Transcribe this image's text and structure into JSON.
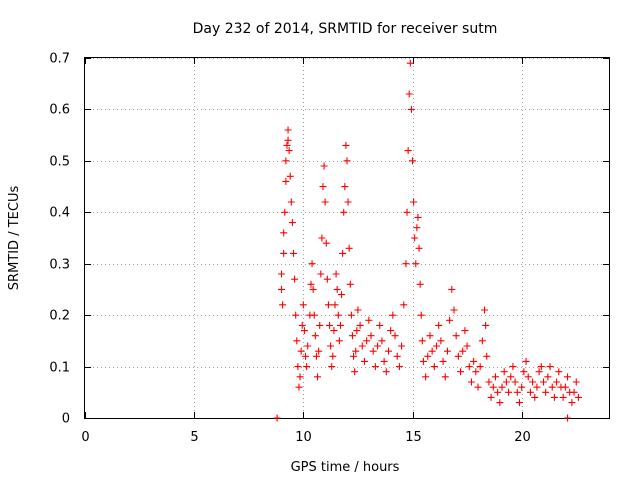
{
  "chart_data": {
    "type": "scatter",
    "title": "Day 232 of 2014, SRMTID for receiver sutm",
    "xlabel": "GPS time / hours",
    "ylabel": "SRMTID / TECUs",
    "xlim": [
      0,
      24
    ],
    "ylim": [
      0,
      0.7
    ],
    "xticks": [
      0,
      5,
      10,
      15,
      20
    ],
    "yticks": [
      0,
      0.1,
      0.2,
      0.3,
      0.4,
      0.5,
      0.6,
      0.7
    ],
    "xtick_labels": [
      "0",
      "5",
      "10",
      "15",
      "20"
    ],
    "ytick_labels": [
      "0",
      "0.1",
      "0.2",
      "0.3",
      "0.4",
      "0.5",
      "0.6",
      "0.7"
    ],
    "grid": true,
    "marker": "+",
    "series": [
      {
        "name": "SRMTID",
        "color": "#ff0000",
        "points": [
          [
            8.8,
            0.0
          ],
          [
            22.1,
            0.0
          ],
          [
            9.0,
            0.28
          ],
          [
            9.0,
            0.25
          ],
          [
            9.05,
            0.22
          ],
          [
            9.1,
            0.32
          ],
          [
            9.1,
            0.36
          ],
          [
            9.15,
            0.4
          ],
          [
            9.2,
            0.46
          ],
          [
            9.2,
            0.5
          ],
          [
            9.25,
            0.53
          ],
          [
            9.3,
            0.56
          ],
          [
            9.3,
            0.54
          ],
          [
            9.35,
            0.52
          ],
          [
            9.4,
            0.47
          ],
          [
            9.45,
            0.42
          ],
          [
            9.5,
            0.38
          ],
          [
            9.55,
            0.32
          ],
          [
            9.6,
            0.27
          ],
          [
            9.65,
            0.2
          ],
          [
            9.7,
            0.15
          ],
          [
            9.75,
            0.1
          ],
          [
            9.8,
            0.06
          ],
          [
            9.85,
            0.08
          ],
          [
            9.9,
            0.13
          ],
          [
            9.95,
            0.18
          ],
          [
            10.0,
            0.22
          ],
          [
            10.05,
            0.17
          ],
          [
            10.1,
            0.12
          ],
          [
            10.15,
            0.1
          ],
          [
            10.2,
            0.14
          ],
          [
            10.3,
            0.2
          ],
          [
            10.35,
            0.26
          ],
          [
            10.4,
            0.3
          ],
          [
            10.45,
            0.25
          ],
          [
            10.5,
            0.2
          ],
          [
            10.55,
            0.16
          ],
          [
            10.6,
            0.12
          ],
          [
            10.65,
            0.08
          ],
          [
            10.7,
            0.13
          ],
          [
            10.75,
            0.18
          ],
          [
            10.8,
            0.28
          ],
          [
            10.85,
            0.35
          ],
          [
            10.9,
            0.45
          ],
          [
            10.95,
            0.49
          ],
          [
            11.0,
            0.42
          ],
          [
            11.05,
            0.34
          ],
          [
            11.1,
            0.27
          ],
          [
            11.15,
            0.22
          ],
          [
            11.2,
            0.18
          ],
          [
            11.25,
            0.14
          ],
          [
            11.3,
            0.1
          ],
          [
            11.35,
            0.12
          ],
          [
            11.4,
            0.17
          ],
          [
            11.45,
            0.22
          ],
          [
            11.5,
            0.28
          ],
          [
            11.55,
            0.25
          ],
          [
            11.6,
            0.2
          ],
          [
            11.65,
            0.15
          ],
          [
            11.7,
            0.18
          ],
          [
            11.75,
            0.24
          ],
          [
            11.8,
            0.32
          ],
          [
            11.85,
            0.4
          ],
          [
            11.9,
            0.45
          ],
          [
            11.95,
            0.53
          ],
          [
            12.0,
            0.5
          ],
          [
            12.05,
            0.42
          ],
          [
            12.1,
            0.33
          ],
          [
            12.15,
            0.26
          ],
          [
            12.2,
            0.2
          ],
          [
            12.25,
            0.16
          ],
          [
            12.3,
            0.12
          ],
          [
            12.35,
            0.09
          ],
          [
            12.4,
            0.13
          ],
          [
            12.45,
            0.17
          ],
          [
            12.5,
            0.21
          ],
          [
            12.6,
            0.18
          ],
          [
            12.7,
            0.14
          ],
          [
            12.8,
            0.11
          ],
          [
            12.9,
            0.15
          ],
          [
            13.0,
            0.19
          ],
          [
            13.1,
            0.16
          ],
          [
            13.2,
            0.13
          ],
          [
            13.3,
            0.1
          ],
          [
            13.4,
            0.14
          ],
          [
            13.5,
            0.18
          ],
          [
            13.6,
            0.15
          ],
          [
            13.7,
            0.11
          ],
          [
            13.8,
            0.09
          ],
          [
            13.9,
            0.13
          ],
          [
            14.0,
            0.17
          ],
          [
            14.1,
            0.2
          ],
          [
            14.2,
            0.16
          ],
          [
            14.3,
            0.12
          ],
          [
            14.4,
            0.1
          ],
          [
            14.5,
            0.14
          ],
          [
            14.6,
            0.22
          ],
          [
            14.7,
            0.3
          ],
          [
            14.75,
            0.4
          ],
          [
            14.8,
            0.52
          ],
          [
            14.85,
            0.63
          ],
          [
            14.9,
            0.69
          ],
          [
            14.95,
            0.6
          ],
          [
            15.0,
            0.5
          ],
          [
            15.05,
            0.42
          ],
          [
            15.1,
            0.35
          ],
          [
            15.15,
            0.3
          ],
          [
            15.2,
            0.37
          ],
          [
            15.25,
            0.39
          ],
          [
            15.3,
            0.33
          ],
          [
            15.35,
            0.26
          ],
          [
            15.4,
            0.2
          ],
          [
            15.45,
            0.15
          ],
          [
            15.5,
            0.11
          ],
          [
            15.6,
            0.08
          ],
          [
            15.7,
            0.12
          ],
          [
            15.8,
            0.16
          ],
          [
            15.9,
            0.13
          ],
          [
            16.0,
            0.1
          ],
          [
            16.1,
            0.14
          ],
          [
            16.2,
            0.18
          ],
          [
            16.3,
            0.15
          ],
          [
            16.4,
            0.11
          ],
          [
            16.5,
            0.08
          ],
          [
            16.6,
            0.13
          ],
          [
            16.7,
            0.19
          ],
          [
            16.8,
            0.25
          ],
          [
            16.9,
            0.21
          ],
          [
            17.0,
            0.16
          ],
          [
            17.1,
            0.12
          ],
          [
            17.2,
            0.09
          ],
          [
            17.3,
            0.13
          ],
          [
            17.4,
            0.17
          ],
          [
            17.5,
            0.14
          ],
          [
            17.6,
            0.1
          ],
          [
            17.7,
            0.07
          ],
          [
            17.8,
            0.11
          ],
          [
            17.9,
            0.09
          ],
          [
            18.0,
            0.06
          ],
          [
            18.1,
            0.1
          ],
          [
            18.2,
            0.15
          ],
          [
            18.3,
            0.21
          ],
          [
            18.35,
            0.18
          ],
          [
            18.4,
            0.12
          ],
          [
            18.5,
            0.07
          ],
          [
            18.6,
            0.04
          ],
          [
            18.7,
            0.06
          ],
          [
            18.8,
            0.08
          ],
          [
            18.9,
            0.05
          ],
          [
            19.0,
            0.03
          ],
          [
            19.1,
            0.06
          ],
          [
            19.2,
            0.09
          ],
          [
            19.3,
            0.07
          ],
          [
            19.4,
            0.05
          ],
          [
            19.5,
            0.08
          ],
          [
            19.6,
            0.1
          ],
          [
            19.7,
            0.07
          ],
          [
            19.8,
            0.05
          ],
          [
            19.9,
            0.03
          ],
          [
            20.0,
            0.06
          ],
          [
            20.1,
            0.09
          ],
          [
            20.2,
            0.11
          ],
          [
            20.3,
            0.08
          ],
          [
            20.4,
            0.05
          ],
          [
            20.5,
            0.07
          ],
          [
            20.6,
            0.04
          ],
          [
            20.7,
            0.06
          ],
          [
            20.8,
            0.09
          ],
          [
            20.9,
            0.1
          ],
          [
            21.0,
            0.07
          ],
          [
            21.1,
            0.05
          ],
          [
            21.2,
            0.08
          ],
          [
            21.3,
            0.1
          ],
          [
            21.4,
            0.06
          ],
          [
            21.5,
            0.04
          ],
          [
            21.6,
            0.07
          ],
          [
            21.7,
            0.09
          ],
          [
            21.8,
            0.06
          ],
          [
            21.9,
            0.04
          ],
          [
            22.0,
            0.06
          ],
          [
            22.1,
            0.08
          ],
          [
            22.2,
            0.05
          ],
          [
            22.3,
            0.03
          ],
          [
            22.4,
            0.05
          ],
          [
            22.5,
            0.07
          ],
          [
            22.6,
            0.04
          ]
        ]
      }
    ]
  }
}
